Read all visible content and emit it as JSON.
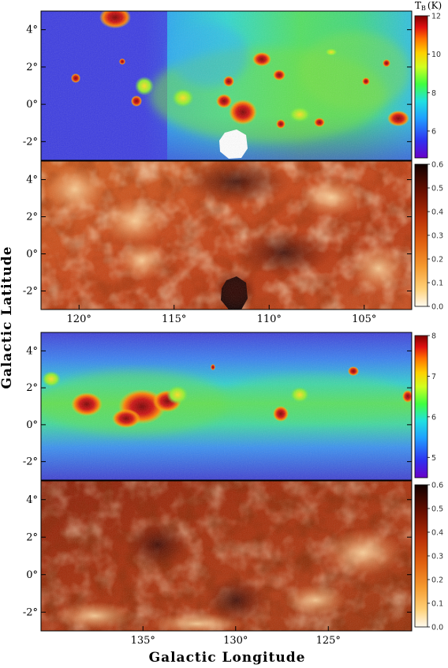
{
  "figure": {
    "xlabel": "Galactic Longitude",
    "ylabel": "Galactic Latitude",
    "panels": [
      {
        "id": "top-tb",
        "kind": "tb",
        "colorbar_title": "T",
        "colorbar_title_sub": "B",
        "colorbar_title_unit": "(K)",
        "colorbar_ticks": [
          "6",
          "8",
          "10",
          "12"
        ],
        "colorbar_range": [
          4.6,
          12
        ],
        "y_ticks": [
          "4°",
          "2°",
          "0°",
          "-2°"
        ],
        "x_ticks": []
      },
      {
        "id": "top-frac",
        "kind": "frac",
        "colorbar_ticks": [
          "0.0",
          "0.1",
          "0.2",
          "0.3",
          "0.4",
          "0.5",
          "0.6"
        ],
        "colorbar_range": [
          0,
          0.6
        ],
        "y_ticks": [
          "4°",
          "2°",
          "0°",
          "-2°"
        ],
        "x_ticks": [
          "120°",
          "115°",
          "110°",
          "105°"
        ]
      },
      {
        "id": "bottom-tb",
        "kind": "tb",
        "colorbar_ticks": [
          "5",
          "6",
          "7",
          "8"
        ],
        "colorbar_range": [
          4.5,
          8
        ],
        "y_ticks": [
          "4°",
          "2°",
          "0°",
          "-2°"
        ],
        "x_ticks": []
      },
      {
        "id": "bottom-frac",
        "kind": "frac",
        "colorbar_ticks": [
          "0.0",
          "0.1",
          "0.2",
          "0.3",
          "0.4",
          "0.5",
          "0.6"
        ],
        "colorbar_range": [
          0,
          0.6
        ],
        "y_ticks": [
          "4°",
          "2°",
          "0°",
          "-2°"
        ],
        "x_ticks": [
          "135°",
          "130°",
          "125°"
        ]
      }
    ],
    "colors": {
      "tb_background": "#4b4bd8",
      "tb_mid": "#38c8e0",
      "tb_high": "#60e040",
      "tb_peak": "#c01010",
      "frac_background": "#c04010",
      "frac_dark": "#400800",
      "frac_light": "#f8c070"
    }
  }
}
